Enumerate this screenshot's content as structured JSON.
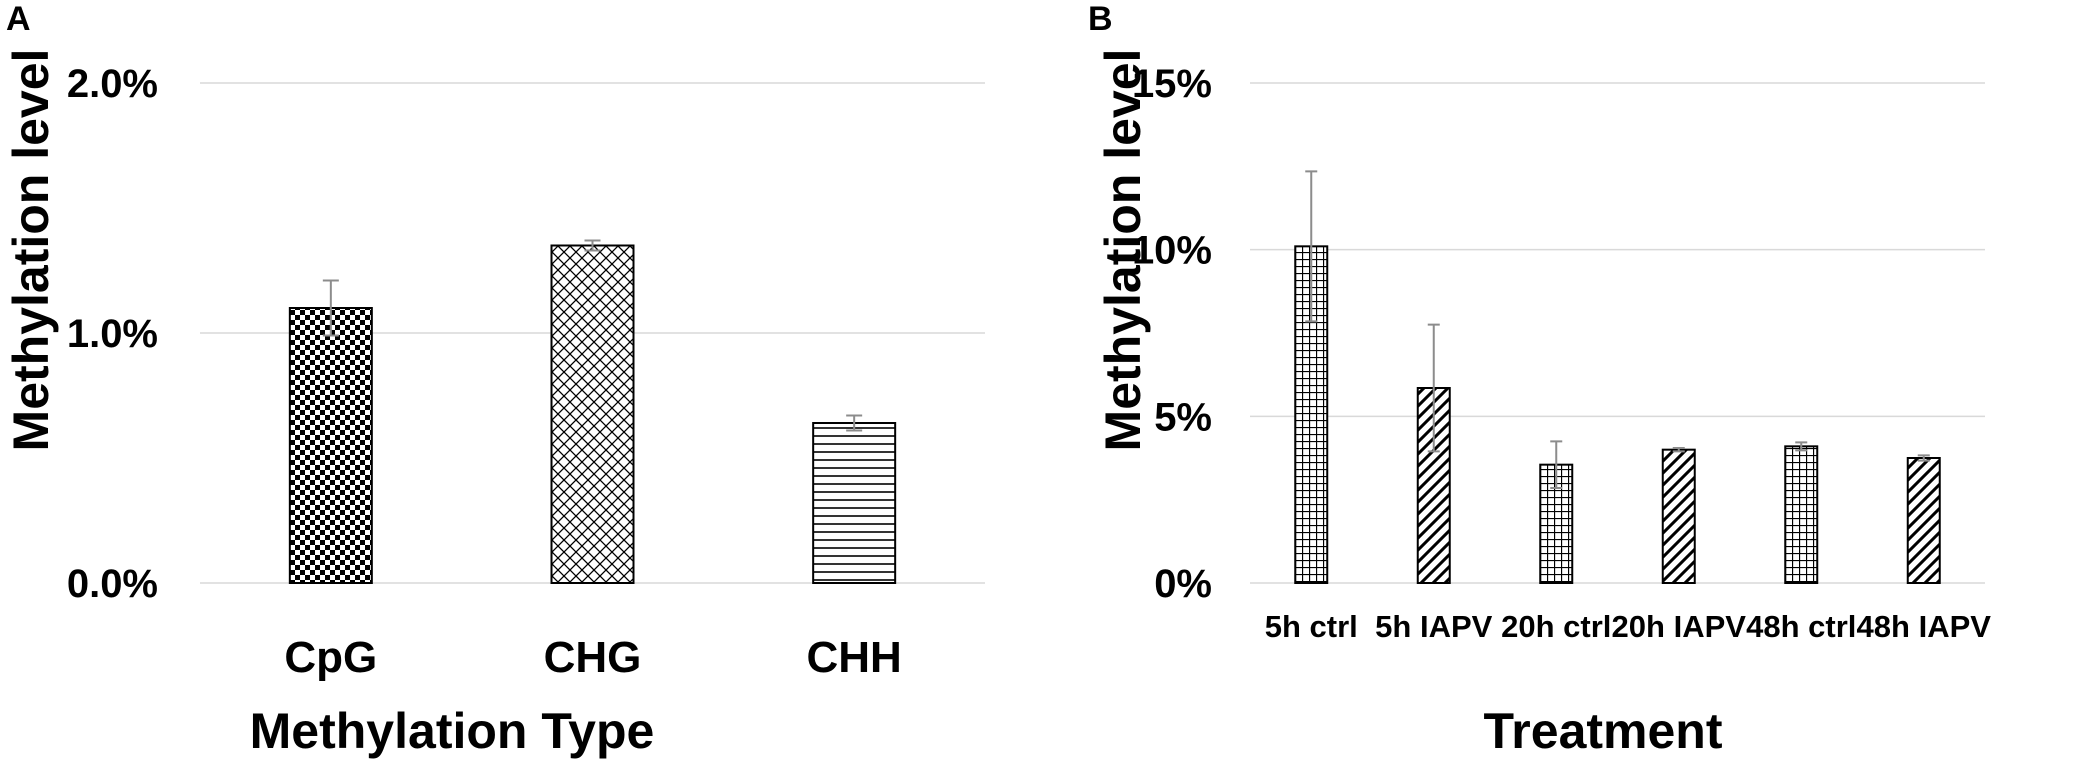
{
  "chart_data": [
    {
      "panel": "A",
      "type": "bar",
      "title": "",
      "xlabel": "Methylation Type",
      "ylabel": "Methylation level",
      "ylim": [
        0,
        2.0
      ],
      "yticks": [
        0,
        1.0,
        2.0
      ],
      "ytick_labels": [
        "0.0%",
        "1.0%",
        "2.0%"
      ],
      "categories": [
        "CpG",
        "CHG",
        "CHH"
      ],
      "values": [
        1.1,
        1.35,
        0.64
      ],
      "errors": [
        0.11,
        0.02,
        0.03
      ],
      "patterns": [
        "checker",
        "diamond",
        "hlines"
      ],
      "grid": true,
      "legend": "none"
    },
    {
      "panel": "B",
      "type": "bar",
      "title": "",
      "xlabel": "Treatment",
      "ylabel": "Methylation level",
      "ylim": [
        0,
        15
      ],
      "yticks": [
        0,
        5,
        10,
        15
      ],
      "ytick_labels": [
        "0%",
        "5%",
        "10%",
        "15%"
      ],
      "categories": [
        "5h ctrl",
        "5h IAPV",
        "20h ctrl",
        "20h IAPV",
        "48h ctrl",
        "48h IAPV"
      ],
      "values": [
        10.1,
        5.85,
        3.55,
        4.0,
        4.1,
        3.75
      ],
      "errors": [
        2.25,
        1.9,
        0.7,
        0.05,
        0.12,
        0.08
      ],
      "patterns": [
        "grid",
        "diag",
        "grid",
        "diag",
        "grid",
        "diag"
      ],
      "grid": true,
      "legend": "none"
    }
  ]
}
